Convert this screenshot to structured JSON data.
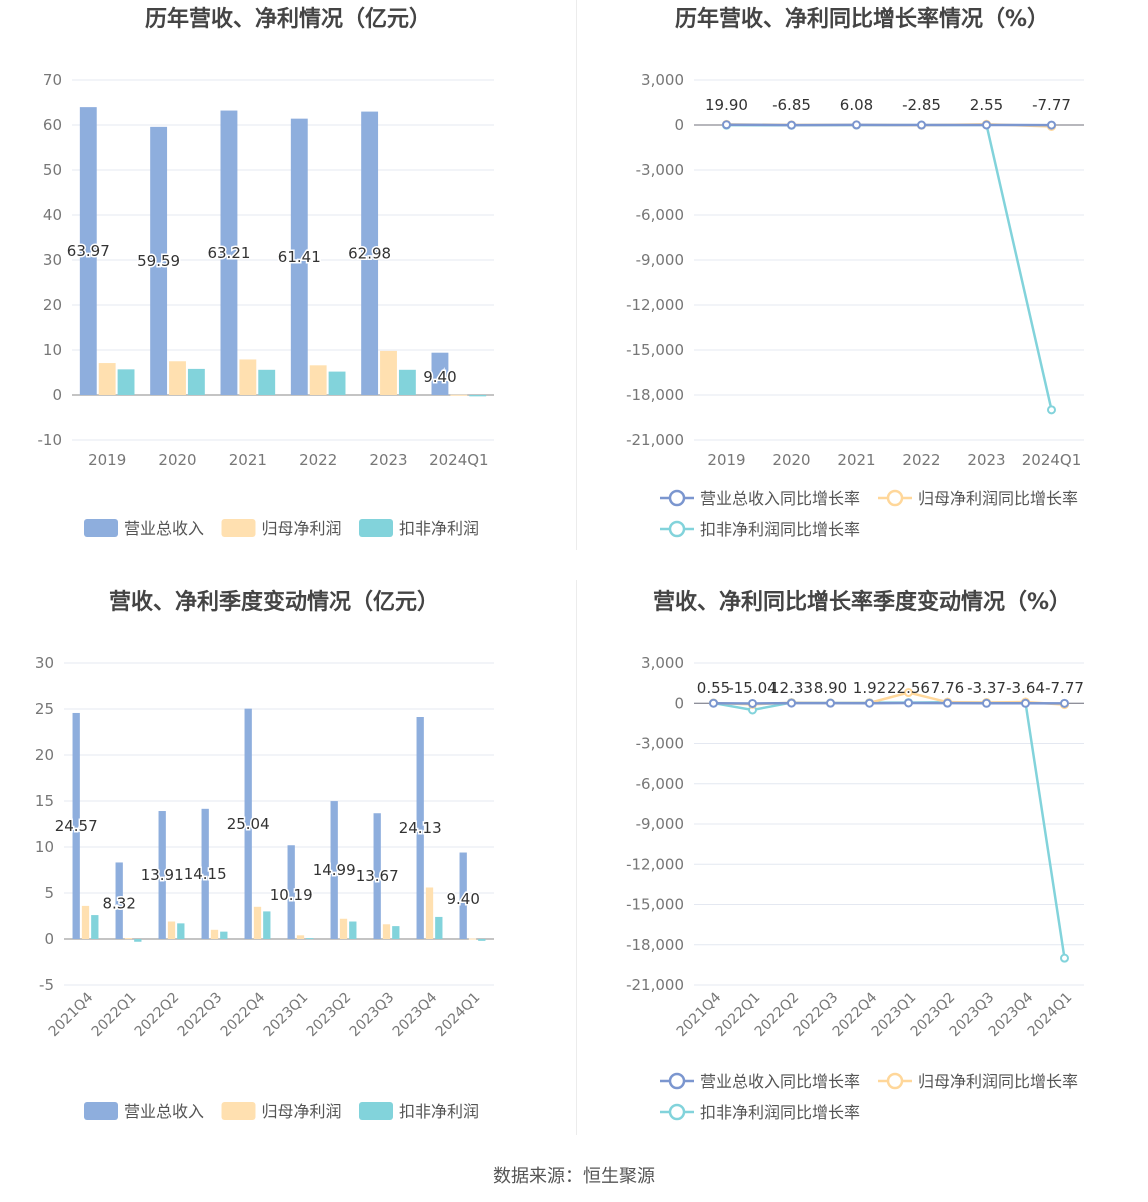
{
  "chart_data": [
    {
      "type": "bar",
      "title": "历年营收、净利情况（亿元）",
      "categories": [
        "2019",
        "2020",
        "2021",
        "2022",
        "2023",
        "2024Q1"
      ],
      "series": [
        {
          "name": "营业总收入",
          "values": [
            63.97,
            59.59,
            63.21,
            61.41,
            62.98,
            9.4
          ],
          "color": "#8eaedd"
        },
        {
          "name": "归母净利润",
          "values": [
            7.1,
            7.5,
            7.9,
            6.6,
            9.8,
            0.05
          ],
          "color": "#ffe0b0"
        },
        {
          "name": "扣非净利润",
          "values": [
            5.7,
            5.8,
            5.6,
            5.2,
            5.6,
            -0.3
          ],
          "color": "#82d3db"
        }
      ],
      "data_labels": [
        "63.97",
        "59.59",
        "63.21",
        "61.41",
        "62.98",
        "9.40"
      ],
      "ylim": [
        -10,
        70
      ],
      "yticks": [
        "-10",
        "0",
        "10",
        "20",
        "30",
        "40",
        "50",
        "60",
        "70"
      ],
      "ytick_values": [
        -10,
        0,
        10,
        20,
        30,
        40,
        50,
        60,
        70
      ],
      "legend": "bottom",
      "grid": true
    },
    {
      "type": "line",
      "title": "历年营收、净利同比增长率情况（%）",
      "categories": [
        "2019",
        "2020",
        "2021",
        "2022",
        "2023",
        "2024Q1"
      ],
      "series": [
        {
          "name": "营业总收入同比增长率",
          "values": [
            19.9,
            -6.85,
            6.08,
            -2.85,
            2.55,
            -7.77
          ],
          "color": "#7b96cf"
        },
        {
          "name": "归母净利润同比增长率",
          "values": [
            40,
            5,
            8,
            -15,
            50,
            -99
          ],
          "color": "#ffd79a"
        },
        {
          "name": "扣非净利润同比增长率",
          "values": [
            -10,
            -20,
            -5,
            -8,
            10,
            -18990
          ],
          "color": "#82d3db"
        }
      ],
      "data_labels": [
        "19.90",
        "-6.85",
        "6.08",
        "-2.85",
        "2.55",
        "-7.77"
      ],
      "ylim": [
        -21000,
        3000
      ],
      "yticks": [
        "-21,000",
        "-18,000",
        "-15,000",
        "-12,000",
        "-9,000",
        "-6,000",
        "-3,000",
        "0",
        "3,000"
      ],
      "ytick_values": [
        -21000,
        -18000,
        -15000,
        -12000,
        -9000,
        -6000,
        -3000,
        0,
        3000
      ],
      "legend": "bottom",
      "grid": true
    },
    {
      "type": "bar",
      "title": "营收、净利季度变动情况（亿元）",
      "categories": [
        "2021Q4",
        "2022Q1",
        "2022Q2",
        "2022Q3",
        "2022Q4",
        "2023Q1",
        "2023Q2",
        "2023Q3",
        "2023Q4",
        "2024Q1"
      ],
      "series": [
        {
          "name": "营业总收入",
          "values": [
            24.57,
            8.32,
            13.91,
            14.15,
            25.04,
            10.19,
            14.99,
            13.67,
            24.13,
            9.4
          ],
          "color": "#8eaedd"
        },
        {
          "name": "归母净利润",
          "values": [
            3.6,
            0.1,
            1.9,
            1.0,
            3.5,
            0.4,
            2.2,
            1.6,
            5.6,
            0.05
          ],
          "color": "#ffe0b0"
        },
        {
          "name": "扣非净利润",
          "values": [
            2.6,
            -0.3,
            1.7,
            0.8,
            3.0,
            0.1,
            1.9,
            1.4,
            2.4,
            -0.2
          ],
          "color": "#82d3db"
        }
      ],
      "data_labels": [
        "24.57",
        "8.32",
        "13.91",
        "14.15",
        "25.04",
        "10.19",
        "14.99",
        "13.67",
        "24.13",
        "9.40"
      ],
      "ylim": [
        -5,
        30
      ],
      "yticks": [
        "-5",
        "0",
        "5",
        "10",
        "15",
        "20",
        "25",
        "30"
      ],
      "ytick_values": [
        -5,
        0,
        5,
        10,
        15,
        20,
        25,
        30
      ],
      "legend": "bottom",
      "grid": true
    },
    {
      "type": "line",
      "title": "营收、净利同比增长率季度变动情况（%）",
      "categories": [
        "2021Q4",
        "2022Q1",
        "2022Q2",
        "2022Q3",
        "2022Q4",
        "2023Q1",
        "2023Q2",
        "2023Q3",
        "2023Q4",
        "2024Q1"
      ],
      "series": [
        {
          "name": "营业总收入同比增长率",
          "values": [
            0.55,
            -15.04,
            12.33,
            8.9,
            1.92,
            22.56,
            7.76,
            -3.37,
            -3.64,
            -7.77
          ],
          "color": "#7b96cf"
        },
        {
          "name": "归母净利润同比增长率",
          "values": [
            20,
            -80,
            40,
            10,
            30,
            800,
            80,
            60,
            90,
            -99
          ],
          "color": "#ffd79a"
        },
        {
          "name": "扣非净利润同比增长率",
          "values": [
            15,
            -500,
            50,
            20,
            40,
            50,
            70,
            50,
            40,
            -19000
          ],
          "color": "#82d3db"
        }
      ],
      "data_labels": [
        "0.55",
        "-15.04",
        "12.33",
        "8.90",
        "1.92",
        "22.56",
        "7.76",
        "-3.37",
        "-3.64",
        "-7.77"
      ],
      "ylim": [
        -21000,
        3000
      ],
      "yticks": [
        "-21,000",
        "-18,000",
        "-15,000",
        "-12,000",
        "-9,000",
        "-6,000",
        "-3,000",
        "0",
        "3,000"
      ],
      "ytick_values": [
        -21000,
        -18000,
        -15000,
        -12000,
        -9000,
        -6000,
        -3000,
        0,
        3000
      ],
      "legend": "bottom",
      "grid": true
    }
  ],
  "footer": {
    "source": "数据来源：恒生聚源"
  }
}
